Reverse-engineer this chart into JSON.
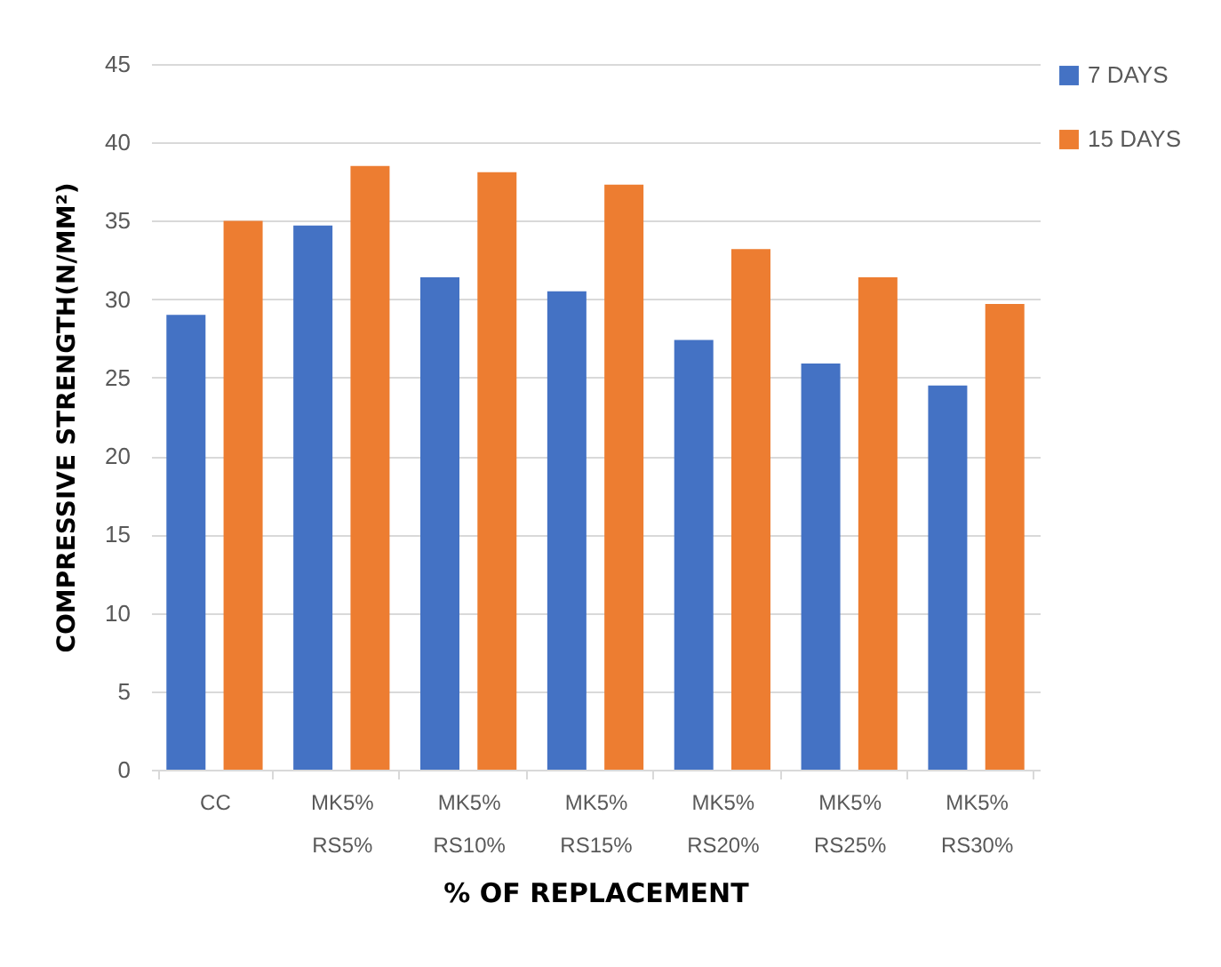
{
  "chart_data": {
    "type": "bar",
    "xlabel": "% OF REPLACEMENT",
    "ylabel": "COMPRESSIVE STRENGTH(N/MM²)",
    "categories": [
      "CC",
      "MK5% RS5%",
      "MK5% RS10%",
      "MK5% RS15%",
      "MK5% RS20%",
      "MK5% RS25%",
      "MK5% RS30%"
    ],
    "series": [
      {
        "name": "7 DAYS",
        "color": "#4472c4",
        "values": [
          29.0,
          34.7,
          31.4,
          30.5,
          27.4,
          25.9,
          24.5
        ]
      },
      {
        "name": "15 DAYS",
        "color": "#ed7d31",
        "values": [
          35.0,
          38.5,
          38.1,
          37.3,
          33.2,
          31.4,
          29.7
        ]
      }
    ],
    "ylim": [
      0,
      45
    ],
    "yticks": [
      0,
      5,
      10,
      15,
      20,
      25,
      30,
      35,
      40,
      45
    ],
    "grid": "y",
    "legend": "right"
  }
}
